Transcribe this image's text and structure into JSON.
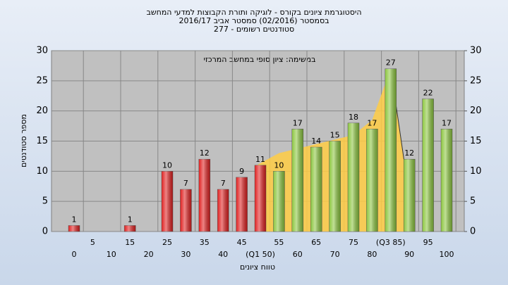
{
  "chart_data": {
    "type": "bar",
    "title": [
      "היסטוגרמת ציונים בקורס - לוגיקה ותורת הקבוצות למדעי המחשב",
      "בסמסטר  (02/2016)  סמסטר אביב 2016/17",
      "סטודנטים רשומים - 277"
    ],
    "annotation": "במשימה: ציון סופי במחשב המרכזי",
    "x_label": "טווח ציונים",
    "y_label": "מספר סטודנטים",
    "categories": [
      "0",
      "5",
      "10",
      "15",
      "20",
      "25",
      "30",
      "35",
      "40",
      "45",
      "(Q1 50)",
      "55",
      "60",
      "65",
      "70",
      "75",
      "80",
      "(Q3 85)",
      "90",
      "95",
      "100"
    ],
    "values": [
      1,
      0,
      0,
      1,
      0,
      10,
      7,
      12,
      7,
      9,
      11,
      10,
      17,
      14,
      15,
      18,
      17,
      27,
      12,
      22,
      17
    ],
    "value_labels": [
      1,
      null,
      null,
      1,
      null,
      10,
      7,
      12,
      7,
      9,
      11,
      10,
      17,
      14,
      15,
      18,
      17,
      27,
      12,
      22,
      17
    ],
    "colors": [
      "#e02020",
      "#e02020",
      "#e02020",
      "#e02020",
      "#e02020",
      "#e02020",
      "#e02020",
      "#e02020",
      "#e02020",
      "#e02020",
      "#e02020",
      "#8cc63f",
      "#8cc63f",
      "#8cc63f",
      "#8cc63f",
      "#8cc63f",
      "#8cc63f",
      "#8cc63f",
      "#8cc63f",
      "#8cc63f",
      "#8cc63f"
    ],
    "area": {
      "color": "#ffcc44",
      "x": [
        49,
        55,
        65,
        75,
        80,
        85,
        89
      ],
      "values": [
        11,
        13,
        14.5,
        16,
        18.5,
        27,
        10
      ]
    },
    "xlim": [
      0,
      100
    ],
    "ylim": [
      0,
      30
    ],
    "yticks": [
      0,
      5,
      10,
      15,
      20,
      25,
      30
    ],
    "y2lim": [
      0,
      30
    ],
    "y2ticks": [
      0,
      5,
      10,
      15,
      20,
      25,
      30
    ],
    "grid": true
  }
}
